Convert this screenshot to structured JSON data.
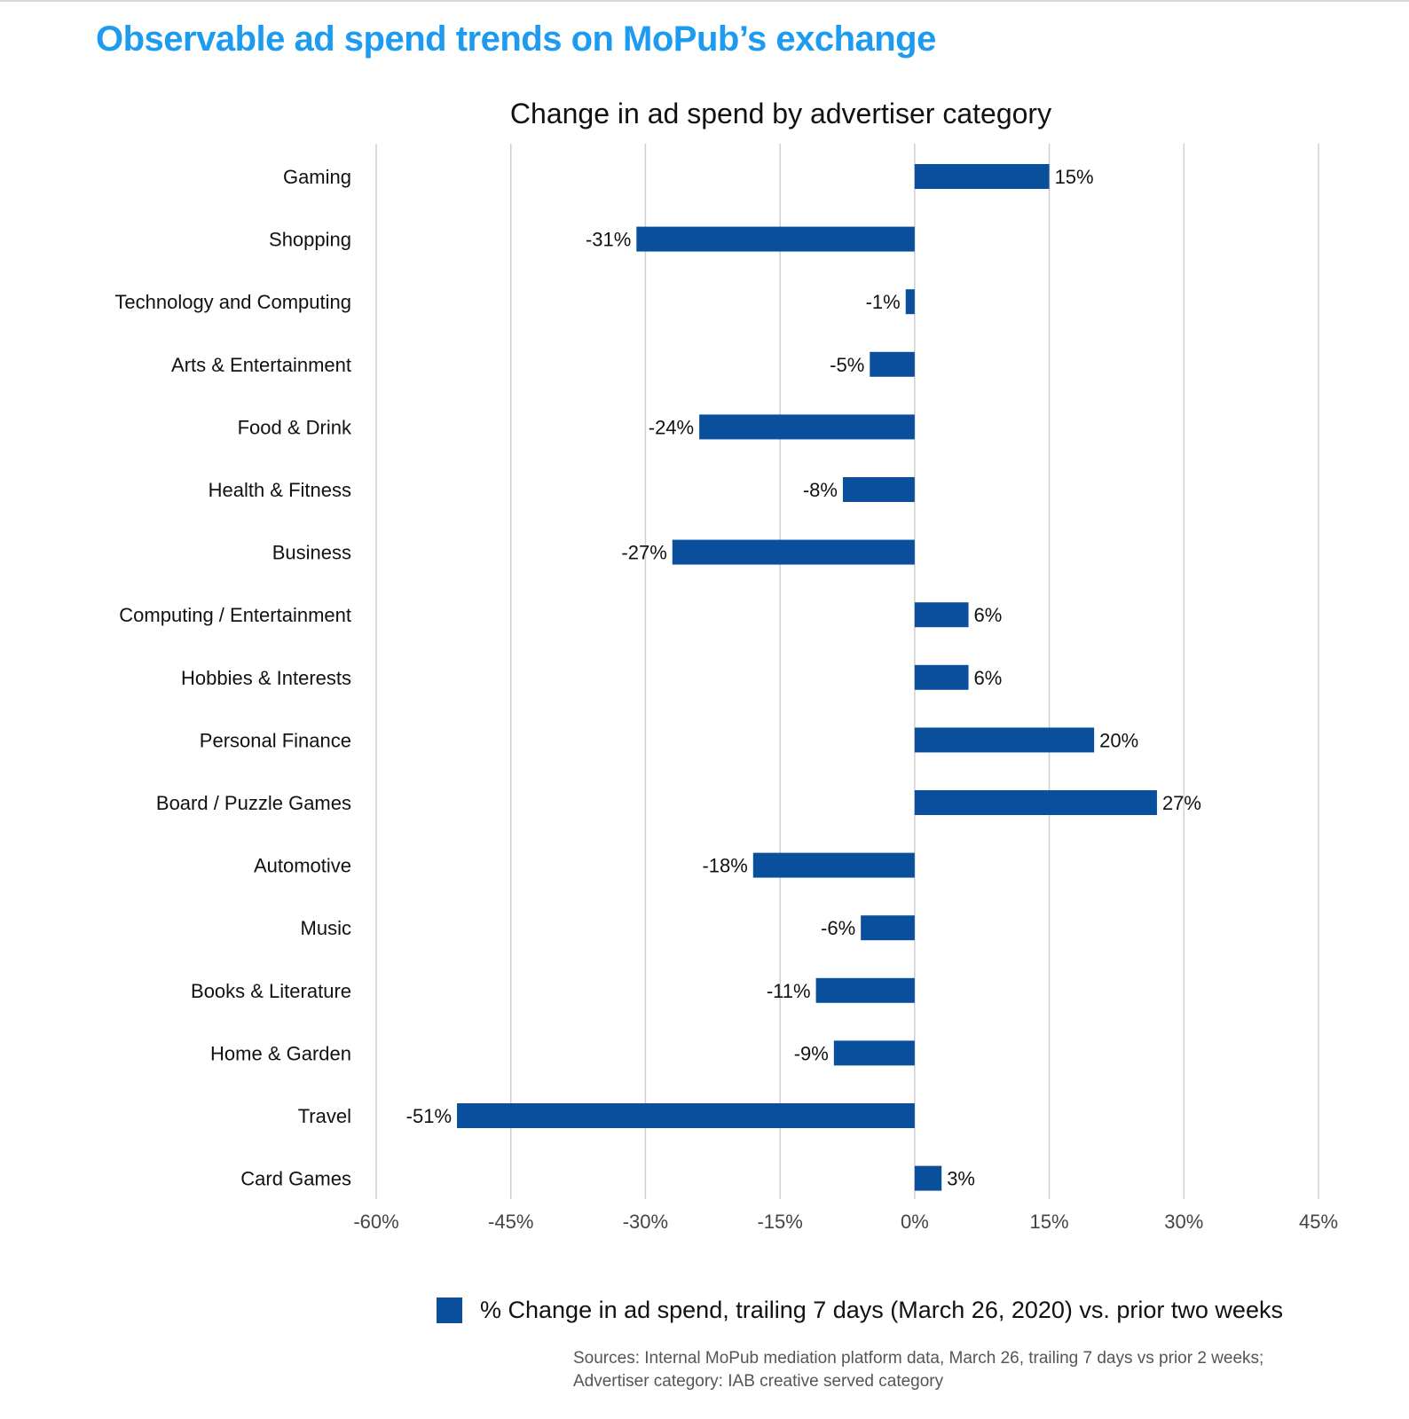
{
  "header": {
    "title": "Observable ad spend trends on MoPub’s exchange"
  },
  "colors": {
    "title": "#1d9bf0",
    "bar": "#0a4f9c",
    "grid": "#cfcfcf"
  },
  "chart_data": {
    "type": "bar",
    "orientation": "horizontal",
    "title": "Change in ad spend by advertiser category",
    "xlabel": "",
    "ylabel": "",
    "xlim": [
      -60,
      45
    ],
    "ticks": [
      -60,
      -45,
      -30,
      -15,
      0,
      15,
      30,
      45
    ],
    "tick_labels": [
      "-60%",
      "-45%",
      "-30%",
      "-15%",
      "0%",
      "15%",
      "30%",
      "45%"
    ],
    "categories": [
      "Gaming",
      "Shopping",
      "Technology and Computing",
      "Arts & Entertainment",
      "Food & Drink",
      "Health & Fitness",
      "Business",
      "Computing / Entertainment",
      "Hobbies & Interests",
      "Personal Finance",
      "Board / Puzzle Games",
      "Automotive",
      "Music",
      "Books & Literature",
      "Home & Garden",
      "Travel",
      "Card Games"
    ],
    "values": [
      15,
      -31,
      -1,
      -5,
      -24,
      -8,
      -27,
      6,
      6,
      20,
      27,
      -18,
      -6,
      -11,
      -9,
      -51,
      3
    ],
    "value_labels": [
      "15%",
      "-31%",
      "-1%",
      "-5%",
      "-24%",
      "-8%",
      "-27%",
      "6%",
      "6%",
      "20%",
      "27%",
      "-18%",
      "-6%",
      "-11%",
      "-9%",
      "-51%",
      "3%"
    ],
    "grid": true,
    "legend": {
      "position": "bottom",
      "label": "% Change in ad spend, trailing 7 days (March 26, 2020) vs. prior two weeks"
    }
  },
  "footer": {
    "sources_line1": "Sources: Internal MoPub mediation platform data, March 26, trailing 7 days vs prior 2 weeks;",
    "sources_line2": "Advertiser category: IAB creative served category"
  }
}
